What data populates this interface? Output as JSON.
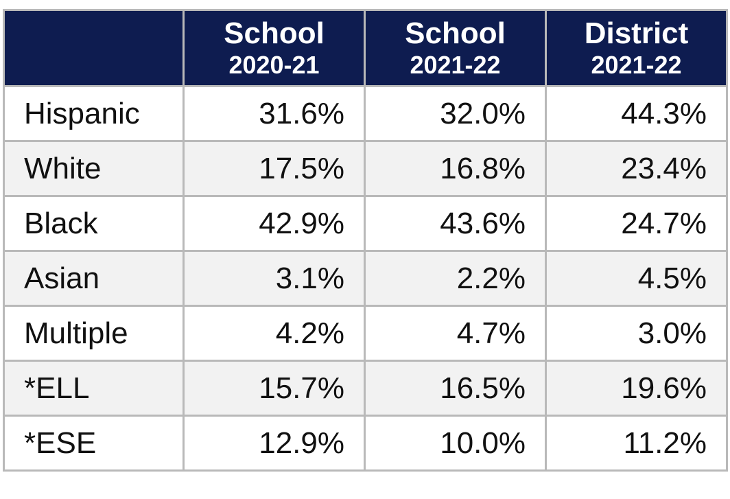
{
  "table": {
    "columns": [
      {
        "line1": "School",
        "line2": "2020-21"
      },
      {
        "line1": "School",
        "line2": "2021-22"
      },
      {
        "line1": "District",
        "line2": "2021-22"
      }
    ],
    "rows": [
      {
        "label": "Hispanic",
        "cells": [
          "31.6%",
          "32.0%",
          "44.3%"
        ]
      },
      {
        "label": "White",
        "cells": [
          "17.5%",
          "16.8%",
          "23.4%"
        ]
      },
      {
        "label": "Black",
        "cells": [
          "42.9%",
          "43.6%",
          "24.7%"
        ]
      },
      {
        "label": "Asian",
        "cells": [
          "3.1%",
          "2.2%",
          "4.5%"
        ]
      },
      {
        "label": "Multiple",
        "cells": [
          "4.2%",
          "4.7%",
          "3.0%"
        ]
      },
      {
        "label": "*ELL",
        "cells": [
          "15.7%",
          "16.5%",
          "19.6%"
        ]
      },
      {
        "label": "*ESE",
        "cells": [
          "12.9%",
          "10.0%",
          "11.2%"
        ]
      }
    ]
  }
}
